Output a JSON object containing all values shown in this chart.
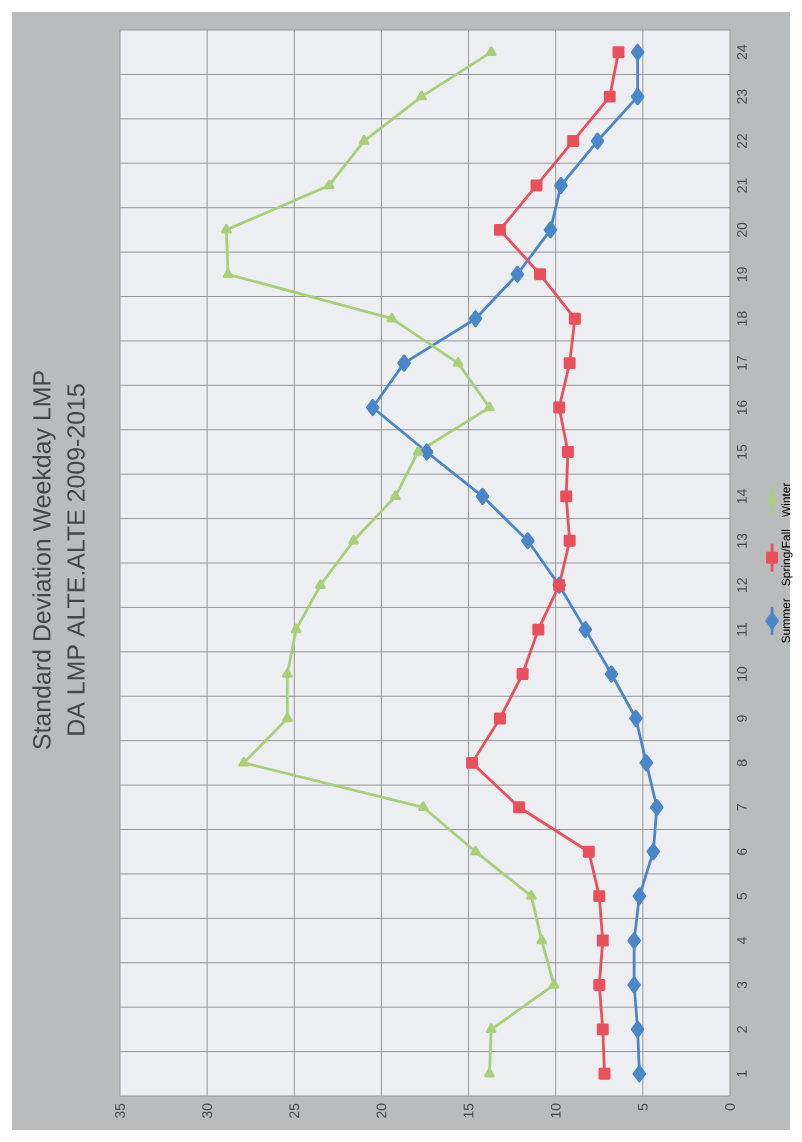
{
  "chart_data": {
    "type": "line",
    "orientation": "horizontal",
    "title": "Standard Deviation Weekday  LMP",
    "subtitle": "DA LMP ALTE.ALTE 2009-2015",
    "categories": [
      "24",
      "23",
      "22",
      "21",
      "20",
      "19",
      "18",
      "17",
      "16",
      "15",
      "14",
      "13",
      "12",
      "11",
      "10",
      "9",
      "8",
      "7",
      "6",
      "5",
      "4",
      "3",
      "2",
      "1"
    ],
    "series": [
      {
        "name": "Summer",
        "color": "#4a86c8",
        "marker": "diamond",
        "values": [
          5.3,
          5.3,
          7.6,
          9.7,
          10.3,
          12.2,
          14.6,
          18.7,
          20.5,
          17.4,
          14.2,
          11.6,
          9.8,
          8.3,
          6.8,
          5.4,
          4.8,
          4.2,
          4.4,
          5.2,
          5.5,
          5.5,
          5.3,
          5.2
        ]
      },
      {
        "name": "Spring/Fall",
        "color": "#e8505b",
        "marker": "square",
        "values": [
          6.4,
          6.9,
          9.0,
          11.1,
          13.2,
          10.9,
          8.9,
          9.2,
          9.8,
          9.3,
          9.4,
          9.2,
          9.8,
          11.0,
          11.9,
          13.2,
          14.8,
          12.1,
          8.1,
          7.5,
          7.3,
          7.5,
          7.3,
          7.2
        ]
      },
      {
        "name": "Winter",
        "color": "#a9cf7a",
        "marker": "triangle",
        "values": [
          13.7,
          17.7,
          21.0,
          23.0,
          28.9,
          28.8,
          19.4,
          15.6,
          13.8,
          17.9,
          19.2,
          21.6,
          23.5,
          24.9,
          25.4,
          25.4,
          27.9,
          17.6,
          14.6,
          11.4,
          10.8,
          10.1,
          13.7,
          13.8
        ]
      }
    ],
    "xlim": [
      35,
      0
    ],
    "xticks": [
      35,
      30,
      25,
      20,
      15,
      10,
      5,
      0
    ],
    "grid": true,
    "legend": "right",
    "line_style": "solid"
  }
}
